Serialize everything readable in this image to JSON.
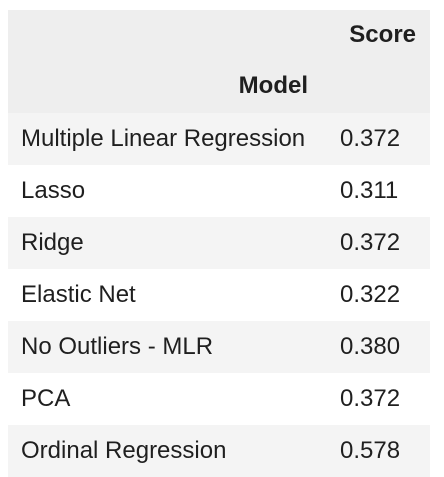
{
  "table": {
    "score_header": "Score",
    "model_header": "Model",
    "rows": [
      {
        "model": "Multiple Linear Regression",
        "score": "0.372"
      },
      {
        "model": "Lasso",
        "score": "0.311"
      },
      {
        "model": "Ridge",
        "score": "0.372"
      },
      {
        "model": "Elastic Net",
        "score": "0.322"
      },
      {
        "model": "No Outliers - MLR",
        "score": "0.380"
      },
      {
        "model": "PCA",
        "score": "0.372"
      },
      {
        "model": "Ordinal Regression",
        "score": "0.578"
      }
    ]
  },
  "colors": {
    "header_background": "#eeeeee",
    "striped_row_background": "#f4f4f4",
    "row_background": "#ffffff",
    "text": "#1f1f1f"
  }
}
